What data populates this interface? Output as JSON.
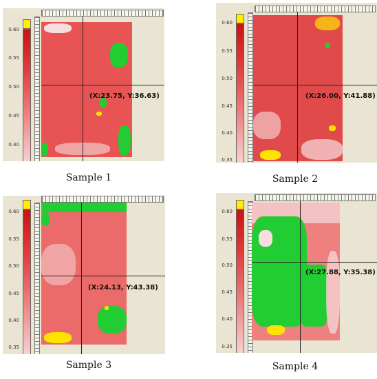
{
  "scale_ticks": [
    "0.60",
    "0.55",
    "0.50",
    "0.45",
    "0.40",
    "0.35"
  ],
  "panels": [
    {
      "coord": "(X:23.75, Y:36.63)",
      "caption": "Sample 1"
    },
    {
      "coord": "(X:26.00, Y:41.88)",
      "caption": "Sample 2"
    },
    {
      "coord": "(X:24.13, Y:43.38)",
      "caption": "Sample 3"
    },
    {
      "coord": "(X:27.88, Y:35.38)",
      "caption": "Sample 4"
    }
  ],
  "colors": {
    "scale_high": "#cc1111",
    "scale_low": "#f8d0d0",
    "scale_top": "#ffee00",
    "green_region": "#22cc33"
  }
}
